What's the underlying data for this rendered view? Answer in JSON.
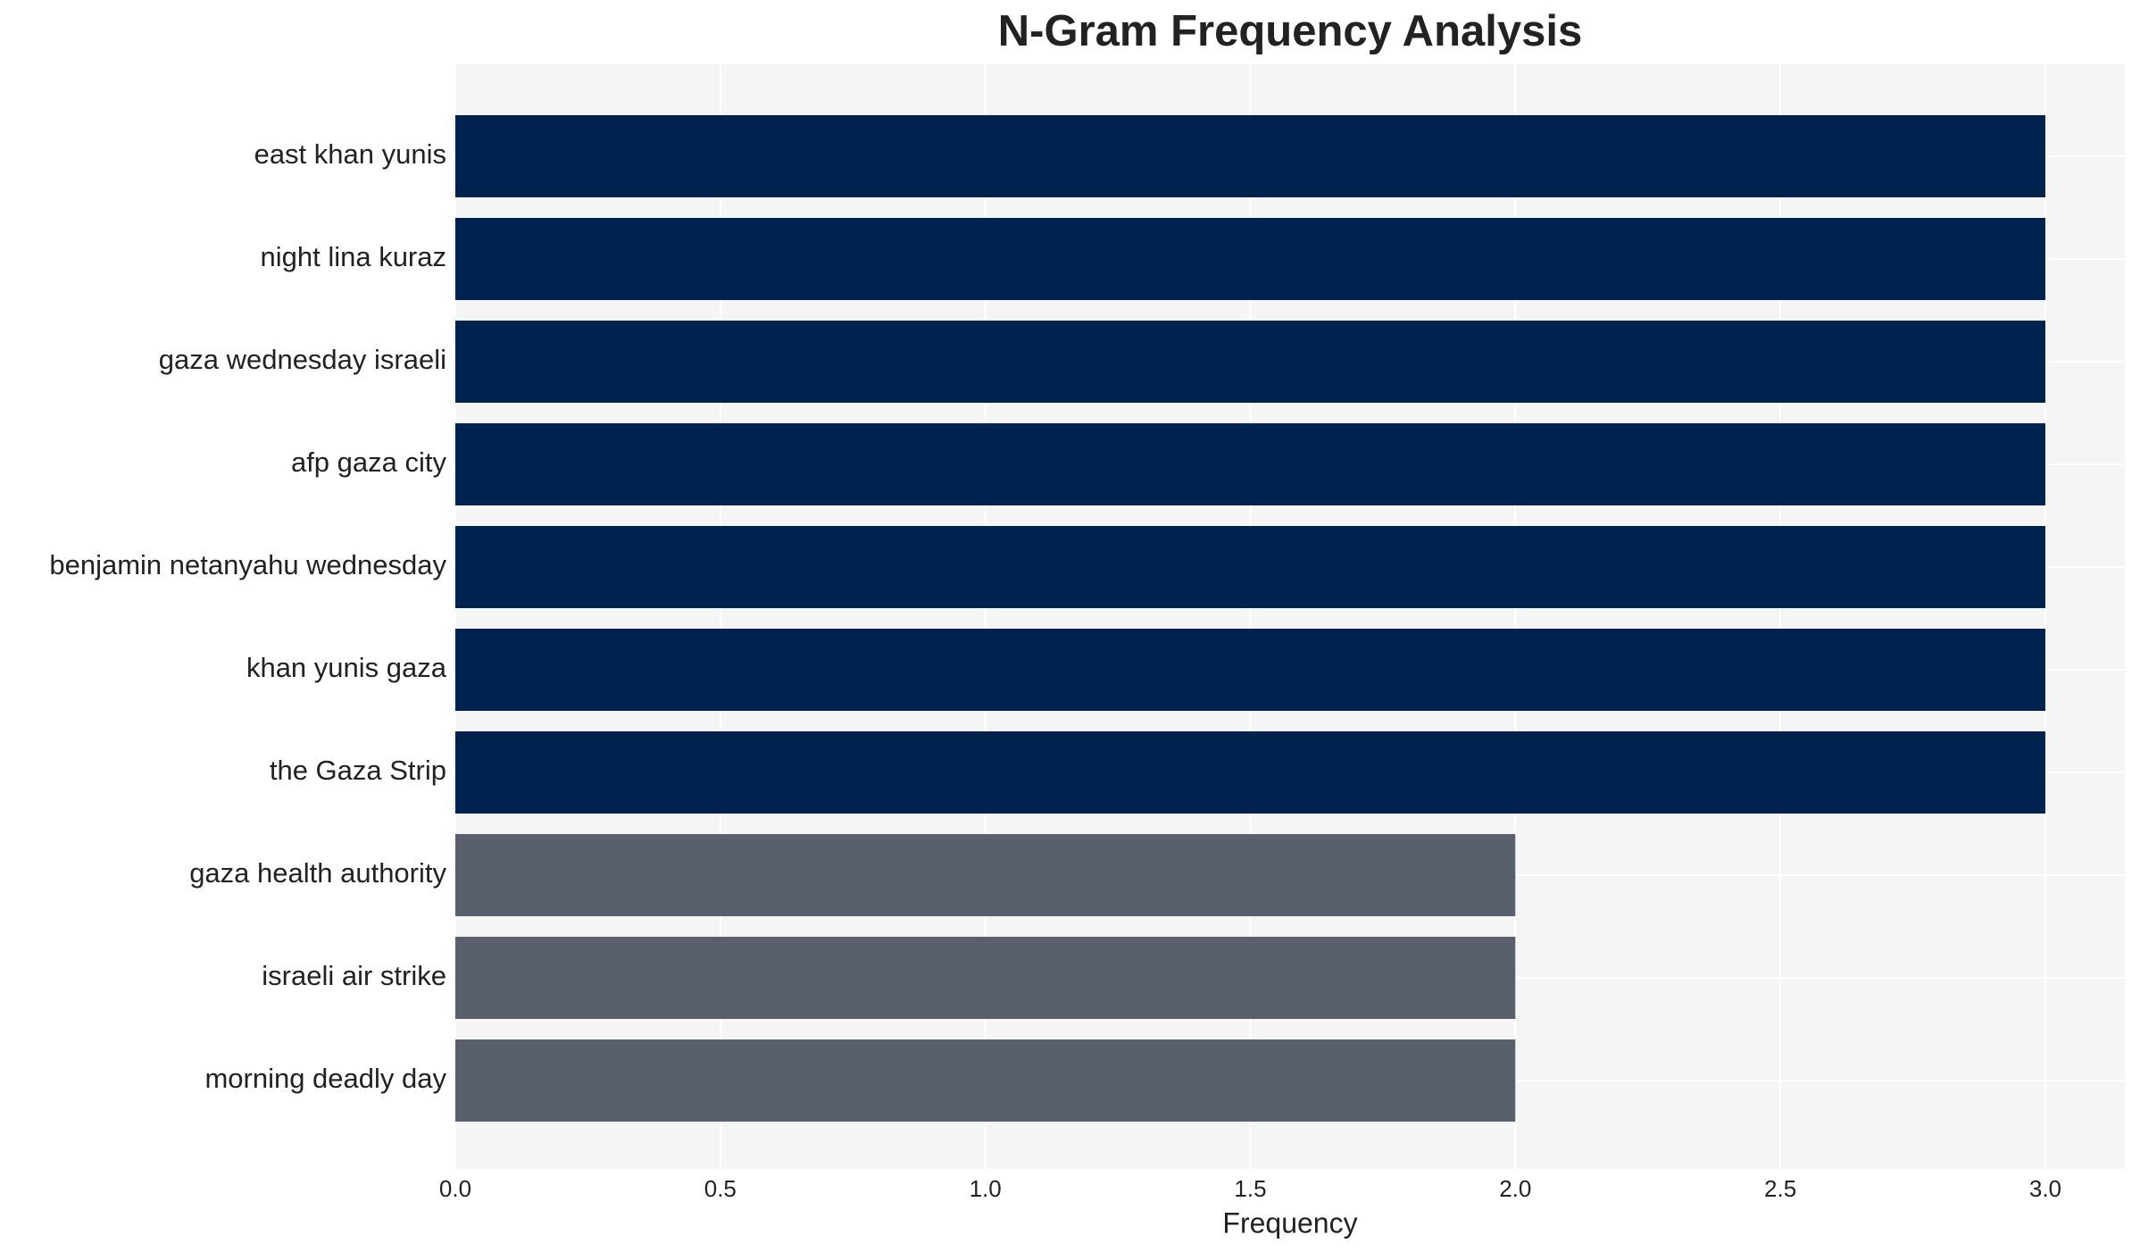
{
  "chart_data": {
    "type": "barh",
    "title": "N-Gram Frequency Analysis",
    "x_label": "Frequency",
    "categories": [
      "east khan yunis",
      "night lina kuraz",
      "gaza wednesday israeli",
      "afp gaza city",
      "benjamin netanyahu wednesday",
      "khan yunis gaza",
      "the Gaza Strip",
      "gaza health authority",
      "israeli air strike",
      "morning deadly day"
    ],
    "values": [
      3,
      3,
      3,
      3,
      3,
      3,
      3,
      2,
      2,
      2
    ],
    "colors": [
      "#00224e",
      "#00224e",
      "#00224e",
      "#00224e",
      "#00224e",
      "#00224e",
      "#00224e",
      "#5a5f6e",
      "#5a5f6e",
      "#5a5f6e"
    ],
    "xlim": [
      0,
      3.15
    ],
    "xticks": [
      {
        "value": 0,
        "label": "0.0"
      },
      {
        "value": 0.5,
        "label": "0.5"
      },
      {
        "value": 1,
        "label": "1.0"
      },
      {
        "value": 1.5,
        "label": "1.5"
      },
      {
        "value": 2,
        "label": "2.0"
      },
      {
        "value": 2.5,
        "label": "2.5"
      },
      {
        "value": 3,
        "label": "3.0"
      }
    ],
    "grid": true
  }
}
